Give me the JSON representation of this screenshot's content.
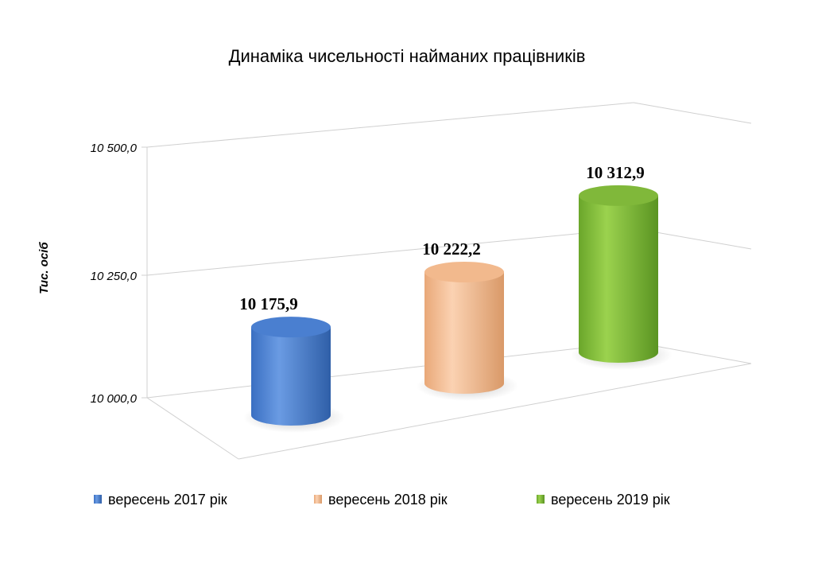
{
  "chart_data": {
    "type": "bar",
    "title": "Динаміка чисельності найманих працівників",
    "ylabel": "Тис. осіб",
    "ylim": [
      10000,
      10500
    ],
    "yticks": [
      "10 000,0",
      "10 250,0",
      "10 500,0"
    ],
    "yticks_values": [
      10000,
      10250,
      10500
    ],
    "categories": [
      "вересень 2017 рік",
      "вересень 2018 рік",
      "вересень 2019 рік"
    ],
    "values": [
      10175.9,
      10222.2,
      10312.9
    ],
    "value_labels": [
      "10 175,9",
      "10 222,2",
      "10 312,9"
    ],
    "colors": [
      "#4a7fd0",
      "#f2b98d",
      "#80b83a"
    ],
    "style": "3d-cylinder",
    "grid": true,
    "legend_position": "bottom"
  }
}
